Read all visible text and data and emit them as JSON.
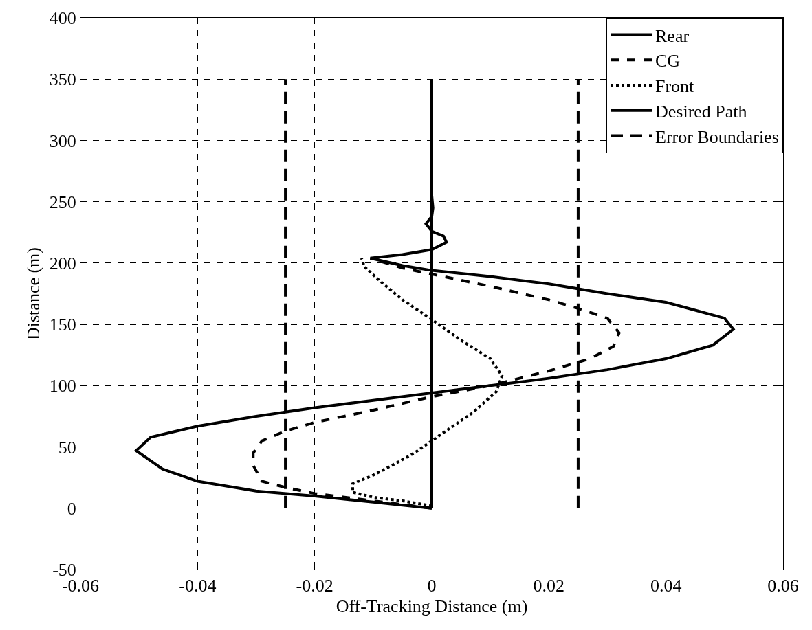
{
  "chart_data": {
    "type": "line",
    "xlabel": "Off-Tracking Distance (m)",
    "ylabel": "Distance (m)",
    "xlim": [
      -0.06,
      0.06
    ],
    "xticks": [
      -0.06,
      -0.04,
      -0.02,
      0,
      0.02,
      0.04,
      0.06
    ],
    "ylim": [
      -50,
      400
    ],
    "yticks": [
      -50,
      0,
      50,
      100,
      150,
      200,
      250,
      300,
      350,
      400
    ],
    "grid": true,
    "legend": "top right",
    "marker": "none",
    "series": [
      {
        "name": "Rear",
        "color": "#000000",
        "line_style": "solid",
        "x": [
          0,
          -0.01,
          -0.02,
          -0.03,
          -0.04,
          -0.046,
          -0.0505,
          -0.048,
          -0.04,
          -0.03,
          -0.02,
          -0.01,
          0,
          0.01,
          0.02,
          0.03,
          0.04,
          0.048,
          0.0515,
          0.05,
          0.04,
          0.03,
          0.02,
          0.01,
          0,
          -0.005,
          -0.0105,
          -0.005,
          0,
          0.0025,
          0.002,
          0,
          -0.001,
          0,
          0.0002,
          0
        ],
        "values": [
          0,
          5,
          10,
          14,
          22,
          32,
          47,
          58,
          67,
          75,
          82,
          88,
          94,
          100,
          106,
          113,
          122,
          133,
          146,
          155,
          168,
          175,
          183,
          189,
          194,
          198,
          204,
          207,
          211,
          217,
          222,
          226,
          232,
          238,
          245,
          255
        ]
      },
      {
        "name": "CG",
        "color": "#000000",
        "line_style": "dashed",
        "x": [
          0,
          -0.01,
          -0.02,
          -0.025,
          -0.029,
          -0.0305,
          -0.0305,
          -0.029,
          -0.025,
          -0.02,
          -0.01,
          0,
          0.01,
          0.02,
          0.027,
          0.031,
          0.032,
          0.03,
          0.025,
          0.02,
          0.01,
          0,
          -0.005,
          -0.0105
        ],
        "values": [
          0,
          6,
          12,
          17,
          22,
          35,
          45,
          55,
          63,
          70,
          80,
          91,
          100,
          112,
          122,
          132,
          143,
          155,
          163,
          170,
          181,
          191,
          196,
          204
        ]
      },
      {
        "name": "Front",
        "color": "#000000",
        "line_style": "dotted",
        "x": [
          0,
          -0.005,
          -0.01,
          -0.0135,
          -0.0135,
          -0.01,
          -0.006,
          -0.003,
          0,
          0.003,
          0.007,
          0.011,
          0.012,
          0.01,
          0.005,
          0,
          -0.005,
          -0.009,
          -0.0115,
          -0.012
        ],
        "values": [
          2,
          6,
          9,
          13,
          20,
          27,
          37,
          45,
          55,
          65,
          78,
          95,
          108,
          122,
          137,
          154,
          170,
          186,
          197,
          204
        ]
      },
      {
        "name": "Desired Path",
        "color": "#000000",
        "line_style": "solid",
        "x": [
          0,
          0
        ],
        "values": [
          0,
          350
        ]
      },
      {
        "name": "Error Boundaries",
        "color": "#000000",
        "line_style": "dashed",
        "x": [
          -0.025,
          -0.025,
          null,
          0.025,
          0.025
        ],
        "values": [
          0,
          350,
          null,
          0,
          350
        ]
      }
    ]
  }
}
